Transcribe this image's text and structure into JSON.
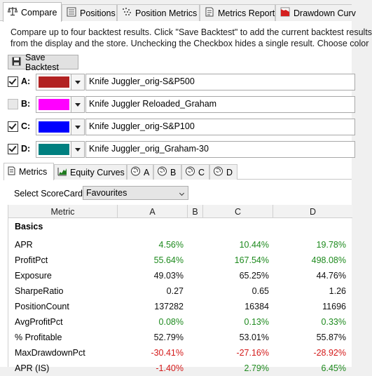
{
  "top_tabs": [
    {
      "label": "Compare",
      "icon": "scale-icon",
      "active": true
    },
    {
      "label": "Positions",
      "icon": "list-icon",
      "active": false
    },
    {
      "label": "Position Metrics",
      "icon": "scatter-icon",
      "active": false
    },
    {
      "label": "Metrics Report",
      "icon": "report-icon",
      "active": false
    },
    {
      "label": "Drawdown Curv",
      "icon": "drawdown-icon",
      "active": false
    }
  ],
  "description": {
    "line1": "Compare up to four backtest results. Click \"Save Backtest\" to add the current backtest results",
    "line2": "from the display and the store. Unchecking the Checkbox hides a single result. Choose color"
  },
  "save_button": {
    "label": "Save Backtest",
    "icon": "save-icon"
  },
  "results": [
    {
      "letter": "A:",
      "checked": true,
      "color": "#b22222",
      "name": "Knife Juggler_orig-S&P500"
    },
    {
      "letter": "B:",
      "checked": false,
      "color": "#ff00ff",
      "name": "Knife Juggler Reloaded_Graham"
    },
    {
      "letter": "C:",
      "checked": true,
      "color": "#0000ff",
      "name": "Knife Juggler_orig-S&P100"
    },
    {
      "letter": "D:",
      "checked": true,
      "color": "#008080",
      "name": "Knife Juggler_orig_Graham-30"
    }
  ],
  "inner_tabs": [
    {
      "label": "Metrics",
      "icon": "metrics-icon",
      "active": true
    },
    {
      "label": "Equity Curves",
      "icon": "equity-icon",
      "active": false
    },
    {
      "label": "A",
      "icon": "brain-icon",
      "active": false
    },
    {
      "label": "B",
      "icon": "brain-icon",
      "active": false
    },
    {
      "label": "C",
      "icon": "brain-icon",
      "active": false
    },
    {
      "label": "D",
      "icon": "brain-icon",
      "active": false
    }
  ],
  "scorecard": {
    "label": "Select ScoreCard:",
    "value": "Favourites"
  },
  "grid": {
    "headers": [
      "Metric",
      "A",
      "B",
      "C",
      "D"
    ],
    "section": "Basics",
    "rows": [
      {
        "metric": "APR",
        "A": "4.56%",
        "C": "10.44%",
        "D": "19.78%",
        "tone": "pos"
      },
      {
        "metric": "ProfitPct",
        "A": "55.64%",
        "C": "167.54%",
        "D": "498.08%",
        "tone": "pos"
      },
      {
        "metric": "Exposure",
        "A": "49.03%",
        "C": "65.25%",
        "D": "44.76%",
        "tone": "neu"
      },
      {
        "metric": "SharpeRatio",
        "A": "0.27",
        "C": "0.65",
        "D": "1.26",
        "tone": "neu"
      },
      {
        "metric": "PositionCount",
        "A": "137282",
        "C": "16384",
        "D": "11696",
        "tone": "neu"
      },
      {
        "metric": "AvgProfitPct",
        "A": "0.08%",
        "C": "0.13%",
        "D": "0.33%",
        "tone": "pos"
      },
      {
        "metric": "% Profitable",
        "A": "52.79%",
        "C": "53.01%",
        "D": "55.87%",
        "tone": "neu"
      },
      {
        "metric": "MaxDrawdownPct",
        "A": "-30.41%",
        "C": "-27.16%",
        "D": "-28.92%",
        "tone": "neg"
      },
      {
        "metric": "APR (IS)",
        "A": "-1.40%",
        "C": "2.79%",
        "D": "6.45%",
        "tone": "mixed"
      }
    ]
  }
}
